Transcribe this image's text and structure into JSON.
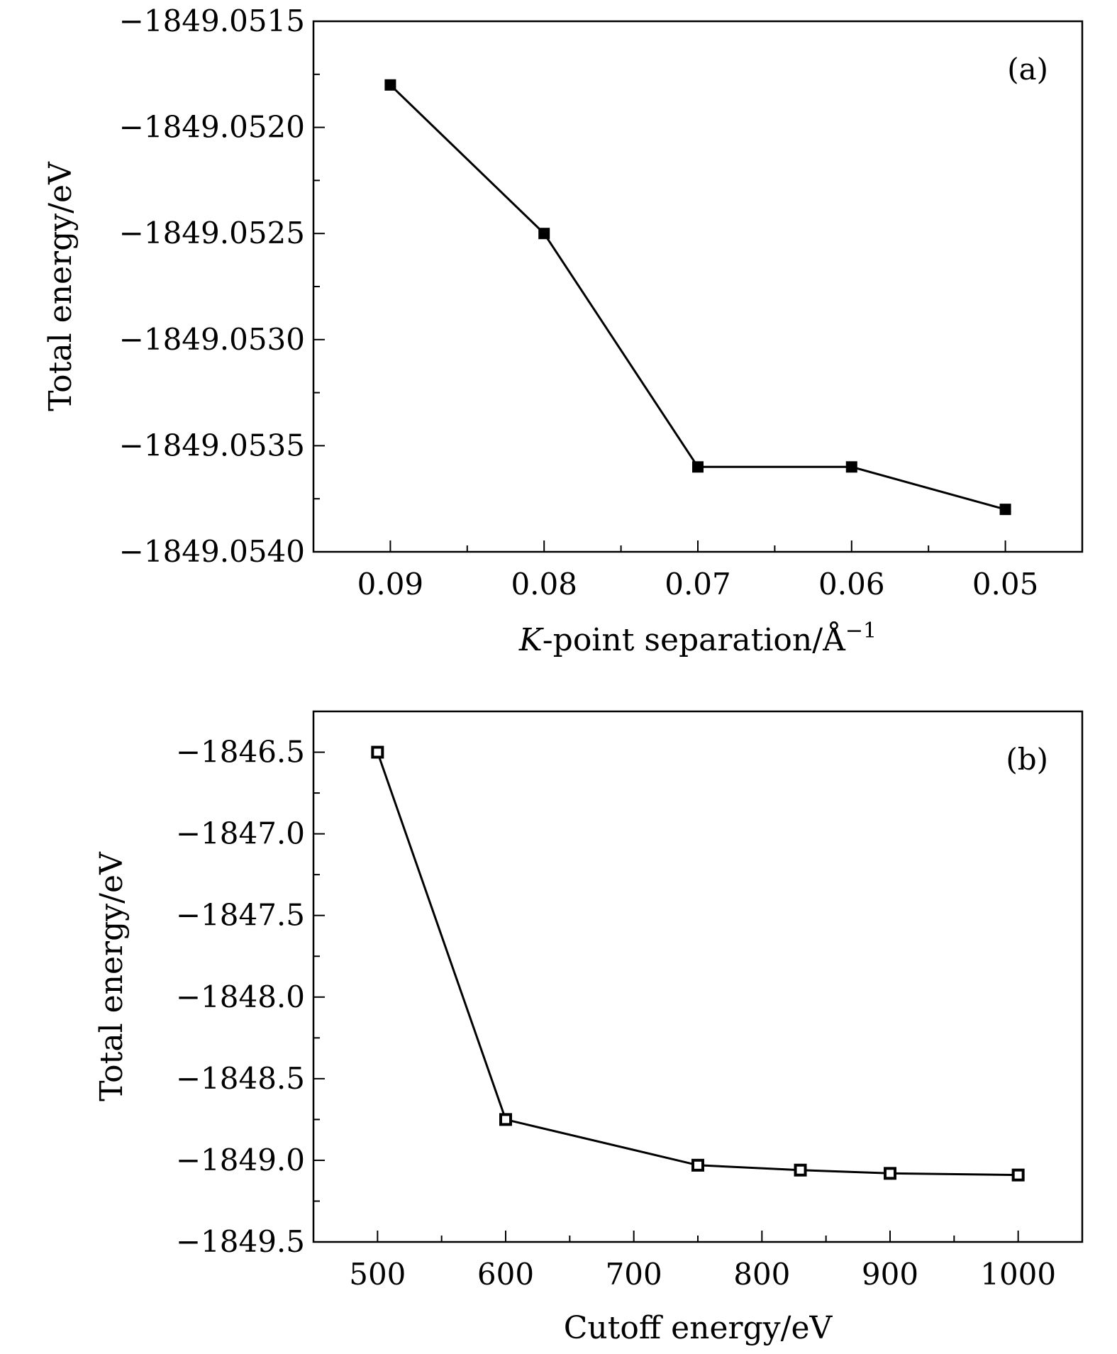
{
  "chart_data": [
    {
      "type": "line",
      "panel_label": "(a)",
      "xlabel_italic": "K",
      "xlabel_rest": "-point separation/Å",
      "xlabel_sup": "−1",
      "ylabel": "Total energy/eV",
      "x_reversed": true,
      "xlim": [
        0.095,
        0.045
      ],
      "ylim": [
        -1849.054,
        -1849.0515
      ],
      "xticks": [
        0.09,
        0.08,
        0.07,
        0.06,
        0.05
      ],
      "xtick_labels": [
        "0.09",
        "0.08",
        "0.07",
        "0.06",
        "0.05"
      ],
      "xminor": [
        0.085,
        0.075,
        0.065,
        0.055
      ],
      "yticks": [
        -1849.0515,
        -1849.052,
        -1849.0525,
        -1849.053,
        -1849.0535,
        -1849.054
      ],
      "ytick_labels": [
        "−1849.0515",
        "−1849.0520",
        "−1849.0525",
        "−1849.0530",
        "−1849.0535",
        "−1849.0540"
      ],
      "yminor": [
        -1849.05175,
        -1849.05225,
        -1849.05275,
        -1849.05325,
        -1849.05375
      ],
      "marker": "filled-square",
      "grid": false,
      "series": [
        {
          "x": [
            0.09,
            0.08,
            0.07,
            0.06,
            0.05
          ],
          "y": [
            -1849.0518,
            -1849.0525,
            -1849.0536,
            -1849.0536,
            -1849.0538
          ]
        }
      ]
    },
    {
      "type": "line",
      "panel_label": "(b)",
      "xlabel": "Cutoff energy/eV",
      "ylabel": "Total energy/eV",
      "x_reversed": false,
      "xlim": [
        450,
        1050
      ],
      "ylim": [
        -1849.5,
        -1846.25
      ],
      "xticks": [
        500,
        600,
        700,
        800,
        900,
        1000
      ],
      "xtick_labels": [
        "500",
        "600",
        "700",
        "800",
        "900",
        "1000"
      ],
      "xminor": [
        550,
        650,
        750,
        850,
        950
      ],
      "yticks": [
        -1846.5,
        -1847.0,
        -1847.5,
        -1848.0,
        -1848.5,
        -1849.0,
        -1849.5
      ],
      "ytick_labels": [
        "−1846.5",
        "−1847.0",
        "−1847.5",
        "−1848.0",
        "−1848.5",
        "−1849.0",
        "−1849.5"
      ],
      "yminor": [
        -1846.75,
        -1847.25,
        -1847.75,
        -1848.25,
        -1848.75,
        -1849.25
      ],
      "marker": "open-square",
      "grid": false,
      "series": [
        {
          "x": [
            500,
            600,
            750,
            830,
            900,
            1000
          ],
          "y": [
            -1846.5,
            -1848.75,
            -1849.03,
            -1849.06,
            -1849.08,
            -1849.09
          ]
        }
      ]
    }
  ]
}
